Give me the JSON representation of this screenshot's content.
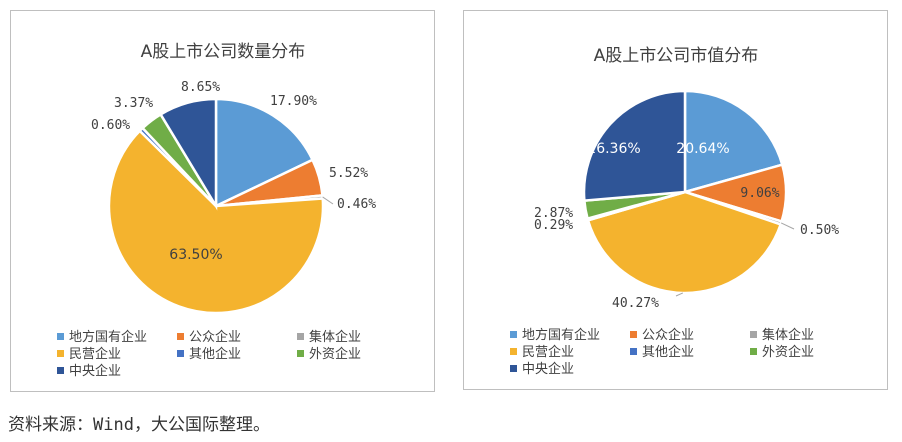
{
  "source_note": "资料来源：Wind，大公国际整理。",
  "legend": {
    "items": [
      {
        "label": "地方国有企业",
        "color": "#5b9bd5"
      },
      {
        "label": "公众企业",
        "color": "#ed7d31"
      },
      {
        "label": "集体企业",
        "color": "#a5a5a5"
      },
      {
        "label": "民营企业",
        "color": "#f4b32e"
      },
      {
        "label": "其他企业",
        "color": "#4472c4"
      },
      {
        "label": "外资企业",
        "color": "#70ad47"
      },
      {
        "label": "中央企业",
        "color": "#2f5597"
      }
    ]
  },
  "chart_data": [
    {
      "type": "pie",
      "title": "A股上市公司数量分布",
      "categories": [
        "地方国有企业",
        "公众企业",
        "集体企业",
        "民营企业",
        "其他企业",
        "外资企业",
        "中央企业"
      ],
      "values": [
        17.9,
        5.52,
        0.46,
        63.5,
        0.6,
        3.37,
        8.65
      ],
      "data_labels": [
        "17.90%",
        "5.52%",
        "0.46%",
        "63.50%",
        "0.60%",
        "3.37%",
        "8.65%"
      ],
      "legend_position": "bottom"
    },
    {
      "type": "pie",
      "title": "A股上市公司市值分布",
      "categories": [
        "地方国有企业",
        "公众企业",
        "集体企业",
        "民营企业",
        "其他企业",
        "外资企业",
        "中央企业"
      ],
      "values": [
        20.64,
        9.06,
        0.5,
        40.27,
        0.29,
        2.87,
        26.36
      ],
      "data_labels": [
        "20.64%",
        "9.06%",
        "0.50%",
        "40.27%",
        "0.29%",
        "2.87%",
        "26.36%"
      ],
      "legend_position": "bottom"
    }
  ]
}
